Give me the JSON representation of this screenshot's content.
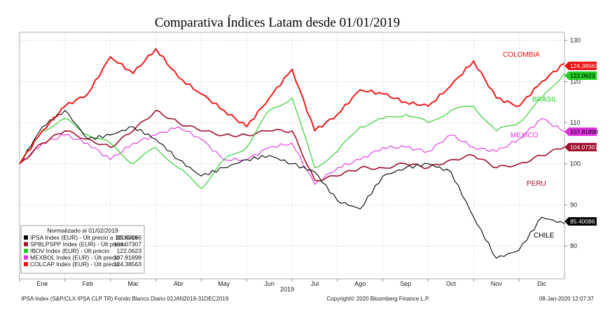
{
  "chart_data": {
    "type": "line",
    "title": "Comparativa Índices Latam desde 01/01/2019",
    "year_label": "2019",
    "x_ticks": [
      "Ene",
      "Feb",
      "Mar",
      "Abr",
      "May",
      "Jun",
      "Jul",
      "Ago",
      "Sep",
      "Oct",
      "Nov",
      "Dic"
    ],
    "y_ticks": [
      "80",
      "90",
      "100",
      "110",
      "120",
      "130"
    ],
    "ylim": [
      72,
      132
    ],
    "grid": true,
    "legend_position": "bottom-left",
    "legend_title": "Normalizado al 01/02/2019",
    "x_months": [
      0,
      0.5,
      1,
      1.5,
      2,
      2.5,
      3,
      3.5,
      4,
      4.5,
      5,
      5.5,
      6,
      6.5,
      7,
      7.5,
      8,
      8.5,
      9,
      9.5,
      10,
      10.5,
      11,
      11.5,
      12
    ],
    "series": [
      {
        "name": "IPSA Index (EUR) - Últ precio a 12/30/19",
        "legend_value": "85.40086",
        "color": "#000000",
        "annotation": "CHILE",
        "badge": "85.40086",
        "values": [
          100,
          109,
          113,
          106,
          107,
          109,
          106,
          101,
          97,
          99,
          101,
          102,
          100,
          98,
          91,
          89,
          97,
          99,
          100,
          98,
          87,
          77,
          79,
          87,
          85.4
        ]
      },
      {
        "name": "SPBLPSPP Index (EUR) - Últ precio",
        "legend_value": "104.07307",
        "color": "#a0102a",
        "annotation": "PERU",
        "badge": "104.07307",
        "values": [
          100,
          105,
          108,
          106,
          104,
          108,
          113,
          110,
          108,
          107,
          107,
          108,
          108,
          96,
          97,
          99,
          99,
          100,
          99,
          101,
          102,
          99,
          100,
          102,
          104.07
        ]
      },
      {
        "name": "IBOV Index (EUR) - Últ precio",
        "legend_value": "122.0623",
        "color": "#22cc22",
        "annotation": "BRASIL",
        "badge": "122.0623",
        "values": [
          100,
          108,
          111,
          107,
          105,
          100,
          104,
          99,
          94,
          101,
          104,
          113,
          116,
          99,
          103,
          109,
          111,
          112,
          110,
          113,
          114,
          108,
          110,
          116,
          122.06
        ]
      },
      {
        "name": "MEXBOL Index (EUR) - Últ precio",
        "legend_value": "107.81898",
        "color": "#dd33dd",
        "annotation": "MEXICO",
        "badge": "107.81898",
        "values": [
          100,
          105,
          107,
          105,
          101,
          105,
          107,
          109,
          106,
          101,
          101,
          104,
          105,
          95,
          99,
          101,
          104,
          104,
          103,
          107,
          104,
          103,
          106,
          111,
          107.82
        ]
      },
      {
        "name": "COLCAP Index (EUR) - Últ precio",
        "legend_value": "124.38563",
        "color": "#ee1111",
        "annotation": "COLOMBIA",
        "badge": "124.38563",
        "values": [
          100,
          108,
          114,
          117,
          126,
          122,
          128,
          121,
          117,
          113,
          109,
          116,
          123,
          108,
          112,
          118,
          117,
          115,
          114,
          119,
          125,
          116,
          114,
          120,
          124.39
        ]
      }
    ]
  },
  "footer": {
    "left": "IPSA Index (S&P/CLX IPSA CLP TR) Fondo Blanco  Diario 02JAN2019-31DEC2019",
    "center": "Copyright© 2020 Bloomberg Finance L.P.",
    "right": "08-Jan-2020 12:07:37"
  }
}
